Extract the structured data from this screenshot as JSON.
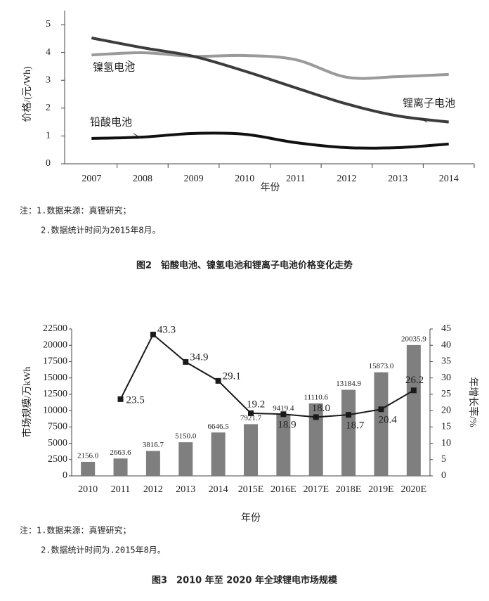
{
  "chart_data": [
    {
      "type": "line",
      "x_label": "年份",
      "y_label": "价格/(元/Wh)",
      "categories": [
        "2007",
        "2008",
        "2009",
        "2010",
        "2011",
        "2012",
        "2013",
        "2014"
      ],
      "ylim": [
        0,
        5
      ],
      "yticks": [
        0,
        1,
        2,
        3,
        4,
        5
      ],
      "series": [
        {
          "name": "镍氢电池",
          "color": "#9a9a9a",
          "values": [
            3.91,
            3.99,
            3.86,
            3.89,
            3.74,
            3.11,
            3.13,
            3.21
          ]
        },
        {
          "name": "锂离子电池",
          "color": "#3c3c3c",
          "values": [
            4.52,
            4.17,
            3.86,
            3.33,
            2.73,
            2.15,
            1.72,
            1.5
          ]
        },
        {
          "name": "铅酸电池",
          "color": "#111111",
          "values": [
            0.91,
            0.96,
            1.09,
            1.06,
            0.76,
            0.58,
            0.58,
            0.71
          ]
        }
      ],
      "notes": [
        "注：1.数据来源：真锂研究；",
        "2.数据统计时间为2015年8月。"
      ],
      "caption": "图2　铅酸电池、镍氢电池和锂离子电池价格变化走势"
    },
    {
      "type": "bar",
      "x_label": "年份",
      "y_label": "市场规模/万kWh",
      "y2_label": "年增长率/%",
      "categories": [
        "2010",
        "2011",
        "2012",
        "2013",
        "2014",
        "2015E",
        "2016E",
        "2017E",
        "2018E",
        "2019E",
        "2020E"
      ],
      "ylim": [
        0,
        22500
      ],
      "yticks": [
        0,
        2500,
        5000,
        7500,
        10000,
        12500,
        15000,
        17500,
        20000,
        22500
      ],
      "y2lim": [
        0,
        45
      ],
      "y2ticks": [
        0,
        5,
        10,
        15,
        20,
        25,
        30,
        35,
        40,
        45
      ],
      "series": [
        {
          "color": "#7f7f7f",
          "values": [
            2156.0,
            2663.6,
            3816.7,
            5150.0,
            6646.5,
            7921.7,
            9419.4,
            11110.6,
            13184.9,
            15873.0,
            20035.9
          ],
          "value_labels": [
            "2156.0",
            "2663.6",
            "3816.7",
            "5150.0",
            "6646.5",
            "7921.7",
            "9419.4",
            "11110.6",
            "13184.9",
            "15873.0",
            "20035.9"
          ]
        },
        {
          "color": "#1a1a1a",
          "axis": "y2",
          "values": [
            null,
            23.5,
            43.3,
            34.9,
            29.1,
            19.2,
            18.9,
            18.0,
            18.7,
            20.4,
            26.2
          ],
          "value_labels": [
            null,
            "23.5",
            "43.3",
            "34.9",
            "29.1",
            "19.2",
            "18.9",
            "18.0",
            "18.7",
            "20.4",
            "26.2"
          ]
        }
      ],
      "notes": [
        "注：1.数据来源：真锂研究；",
        "2.数据统计时间为.2015年8月。"
      ],
      "caption": "图3　2010 年至 2020 年全球锂电市场规模"
    }
  ]
}
